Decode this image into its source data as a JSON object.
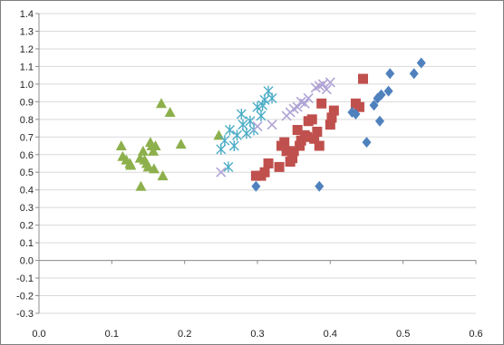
{
  "chart_data": {
    "type": "scatter",
    "title": "",
    "xlabel": "",
    "ylabel": "",
    "xlim": [
      0.0,
      0.6
    ],
    "ylim": [
      -0.3,
      1.4
    ],
    "grid": "horizontal",
    "legend": "none",
    "x_ticks": [
      0.0,
      0.1,
      0.2,
      0.3,
      0.4,
      0.5,
      0.6
    ],
    "x_tick_labels": [
      "0.0",
      "0.1",
      "0.2",
      "0.3",
      "0.4",
      "0.5",
      "0.6"
    ],
    "y_ticks": [
      1.4,
      1.3,
      1.2,
      1.1,
      1.0,
      0.9,
      0.8,
      0.7,
      0.6,
      0.5,
      0.4,
      0.3,
      0.2,
      0.1,
      0.0,
      -0.1,
      -0.2,
      -0.3
    ],
    "y_tick_labels": [
      "1.4",
      "1.3",
      "1.2",
      "1.1",
      "1.0",
      "0.9",
      "0.8",
      "0.7",
      "0.6",
      "0.5",
      "0.4",
      "0.3",
      "0.2",
      "0.1",
      "0.0",
      "-0.1",
      "-0.2",
      "-0.3"
    ],
    "series": [
      {
        "marker": "triangle",
        "color": "#8DB04C",
        "points": [
          [
            0.113,
            0.65
          ],
          [
            0.115,
            0.59
          ],
          [
            0.12,
            0.57
          ],
          [
            0.125,
            0.55
          ],
          [
            0.126,
            0.54
          ],
          [
            0.139,
            0.58
          ],
          [
            0.14,
            0.42
          ],
          [
            0.143,
            0.62
          ],
          [
            0.145,
            0.57
          ],
          [
            0.148,
            0.55
          ],
          [
            0.15,
            0.53
          ],
          [
            0.153,
            0.67
          ],
          [
            0.155,
            0.65
          ],
          [
            0.157,
            0.62
          ],
          [
            0.158,
            0.52
          ],
          [
            0.16,
            0.65
          ],
          [
            0.168,
            0.89
          ],
          [
            0.17,
            0.48
          ],
          [
            0.18,
            0.84
          ],
          [
            0.195,
            0.66
          ],
          [
            0.247,
            0.71
          ]
        ]
      },
      {
        "marker": "asterisk",
        "color": "#4BACC6",
        "points": [
          [
            0.25,
            0.63
          ],
          [
            0.255,
            0.68
          ],
          [
            0.26,
            0.53
          ],
          [
            0.262,
            0.74
          ],
          [
            0.268,
            0.65
          ],
          [
            0.272,
            0.71
          ],
          [
            0.278,
            0.83
          ],
          [
            0.28,
            0.77
          ],
          [
            0.285,
            0.72
          ],
          [
            0.29,
            0.79
          ],
          [
            0.295,
            0.74
          ],
          [
            0.3,
            0.87
          ],
          [
            0.305,
            0.82
          ],
          [
            0.307,
            0.88
          ],
          [
            0.31,
            0.91
          ],
          [
            0.315,
            0.96
          ],
          [
            0.32,
            0.92
          ]
        ]
      },
      {
        "marker": "x",
        "color": "#B0A3D4",
        "points": [
          [
            0.25,
            0.5
          ],
          [
            0.3,
            0.76
          ],
          [
            0.32,
            0.77
          ],
          [
            0.34,
            0.82
          ],
          [
            0.345,
            0.84
          ],
          [
            0.35,
            0.86
          ],
          [
            0.355,
            0.87
          ],
          [
            0.36,
            0.9
          ],
          [
            0.365,
            0.89
          ],
          [
            0.37,
            0.92
          ],
          [
            0.38,
            0.98
          ],
          [
            0.385,
            0.99
          ],
          [
            0.39,
            1.0
          ],
          [
            0.395,
            0.97
          ],
          [
            0.4,
            1.01
          ]
        ]
      },
      {
        "marker": "square",
        "color": "#C0504D",
        "points": [
          [
            0.298,
            0.48
          ],
          [
            0.305,
            0.48
          ],
          [
            0.31,
            0.5
          ],
          [
            0.315,
            0.55
          ],
          [
            0.33,
            0.53
          ],
          [
            0.333,
            0.65
          ],
          [
            0.337,
            0.67
          ],
          [
            0.34,
            0.62
          ],
          [
            0.345,
            0.56
          ],
          [
            0.348,
            0.58
          ],
          [
            0.35,
            0.62
          ],
          [
            0.355,
            0.74
          ],
          [
            0.358,
            0.65
          ],
          [
            0.36,
            0.68
          ],
          [
            0.365,
            0.71
          ],
          [
            0.368,
            0.7
          ],
          [
            0.37,
            0.79
          ],
          [
            0.375,
            0.8
          ],
          [
            0.378,
            0.69
          ],
          [
            0.382,
            0.73
          ],
          [
            0.385,
            0.65
          ],
          [
            0.388,
            0.89
          ],
          [
            0.4,
            0.77
          ],
          [
            0.402,
            0.81
          ],
          [
            0.405,
            0.85
          ],
          [
            0.435,
            0.89
          ],
          [
            0.44,
            0.87
          ],
          [
            0.445,
            1.03
          ]
        ]
      },
      {
        "marker": "diamond",
        "color": "#4F81BD",
        "points": [
          [
            0.298,
            0.42
          ],
          [
            0.385,
            0.42
          ],
          [
            0.43,
            0.84
          ],
          [
            0.435,
            0.83
          ],
          [
            0.45,
            0.67
          ],
          [
            0.46,
            0.88
          ],
          [
            0.465,
            0.92
          ],
          [
            0.468,
            0.79
          ],
          [
            0.47,
            0.94
          ],
          [
            0.48,
            0.96
          ],
          [
            0.482,
            1.06
          ],
          [
            0.515,
            1.06
          ],
          [
            0.525,
            1.12
          ]
        ]
      }
    ]
  }
}
